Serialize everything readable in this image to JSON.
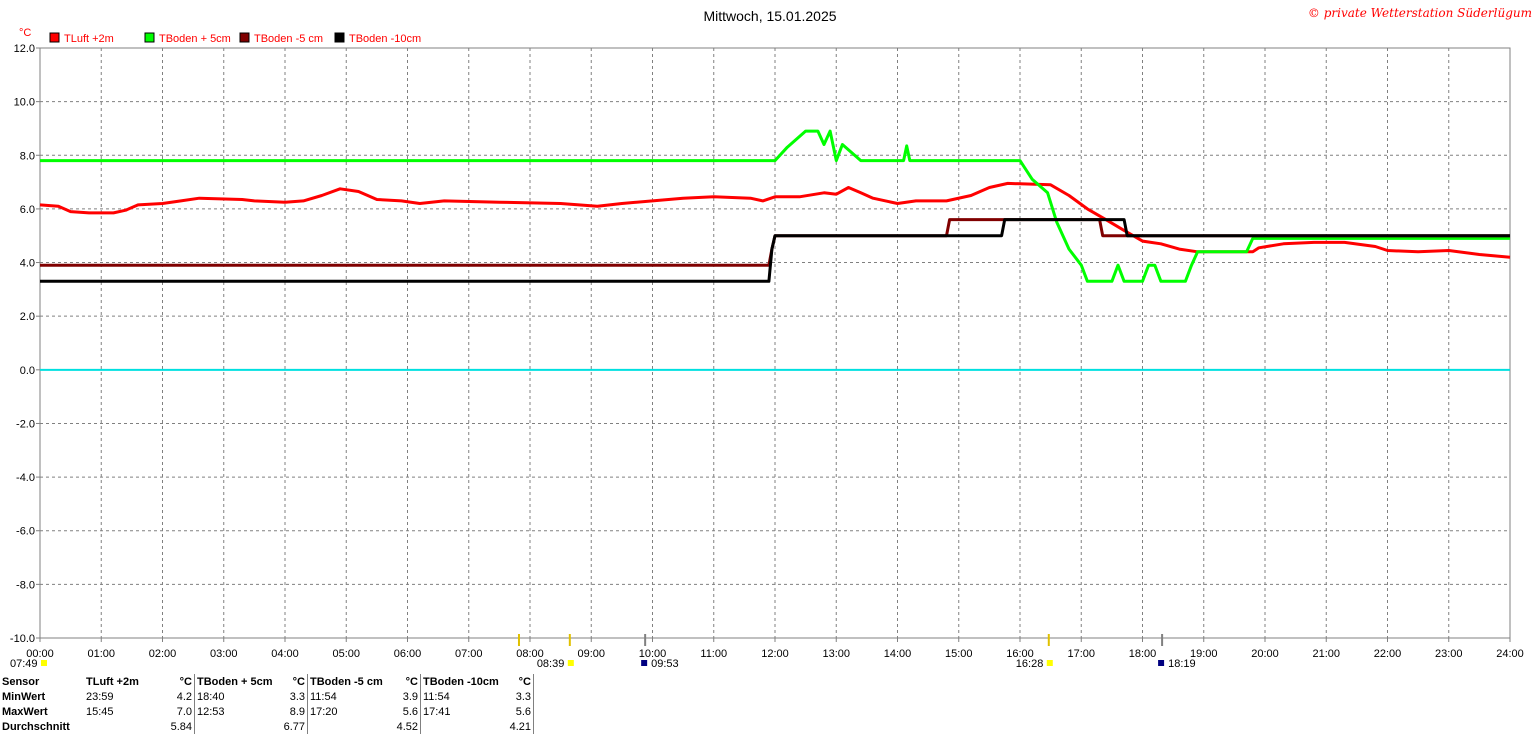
{
  "title": "Mittwoch, 15.01.2025",
  "copyright": "© private Wetterstation Süderlügum",
  "unit": "°C",
  "chart_data": {
    "type": "line",
    "xlim": [
      0,
      24
    ],
    "ylim": [
      -10,
      12
    ],
    "x_ticks": [
      "00:00",
      "01:00",
      "02:00",
      "03:00",
      "04:00",
      "05:00",
      "06:00",
      "07:00",
      "08:00",
      "09:00",
      "10:00",
      "11:00",
      "12:00",
      "13:00",
      "14:00",
      "15:00",
      "16:00",
      "17:00",
      "18:00",
      "19:00",
      "20:00",
      "21:00",
      "22:00",
      "23:00",
      "24:00"
    ],
    "y_ticks": [
      "12.0",
      "10.0",
      "8.0",
      "6.0",
      "4.0",
      "2.0",
      "0.0",
      "-2.0",
      "-4.0",
      "-6.0",
      "-8.0",
      "-10.0"
    ],
    "grid": true,
    "legend_position": "top-left",
    "zero_line": {
      "y": 0,
      "color": "#00e0e0"
    },
    "series": [
      {
        "name": "TLuft +2m",
        "color": "#ff0000",
        "points": [
          [
            0,
            6.15
          ],
          [
            0.3,
            6.1
          ],
          [
            0.5,
            5.9
          ],
          [
            0.8,
            5.85
          ],
          [
            1.2,
            5.85
          ],
          [
            1.4,
            5.95
          ],
          [
            1.6,
            6.15
          ],
          [
            2,
            6.2
          ],
          [
            2.3,
            6.3
          ],
          [
            2.6,
            6.4
          ],
          [
            3.3,
            6.35
          ],
          [
            3.5,
            6.3
          ],
          [
            4.0,
            6.25
          ],
          [
            4.3,
            6.3
          ],
          [
            4.6,
            6.5
          ],
          [
            4.9,
            6.75
          ],
          [
            5.2,
            6.65
          ],
          [
            5.5,
            6.35
          ],
          [
            5.9,
            6.3
          ],
          [
            6.2,
            6.2
          ],
          [
            6.6,
            6.3
          ],
          [
            7.5,
            6.25
          ],
          [
            8.5,
            6.2
          ],
          [
            9.1,
            6.1
          ],
          [
            9.5,
            6.2
          ],
          [
            10,
            6.3
          ],
          [
            10.5,
            6.4
          ],
          [
            11,
            6.45
          ],
          [
            11.6,
            6.4
          ],
          [
            11.8,
            6.3
          ],
          [
            12,
            6.45
          ],
          [
            12.4,
            6.45
          ],
          [
            12.8,
            6.6
          ],
          [
            13,
            6.55
          ],
          [
            13.2,
            6.8
          ],
          [
            13.4,
            6.6
          ],
          [
            13.6,
            6.4
          ],
          [
            14,
            6.2
          ],
          [
            14.3,
            6.3
          ],
          [
            14.8,
            6.3
          ],
          [
            15.2,
            6.5
          ],
          [
            15.5,
            6.8
          ],
          [
            15.8,
            6.95
          ],
          [
            16.5,
            6.9
          ],
          [
            16.8,
            6.5
          ],
          [
            17.1,
            6.0
          ],
          [
            17.4,
            5.6
          ],
          [
            17.7,
            5.2
          ],
          [
            18,
            4.8
          ],
          [
            18.3,
            4.7
          ],
          [
            18.6,
            4.5
          ],
          [
            18.9,
            4.4
          ],
          [
            19.3,
            4.4
          ],
          [
            19.8,
            4.4
          ],
          [
            19.9,
            4.55
          ],
          [
            20.3,
            4.7
          ],
          [
            20.8,
            4.75
          ],
          [
            21.3,
            4.75
          ],
          [
            21.8,
            4.6
          ],
          [
            22,
            4.45
          ],
          [
            22.5,
            4.4
          ],
          [
            23,
            4.45
          ],
          [
            23.5,
            4.3
          ],
          [
            24,
            4.2
          ]
        ]
      },
      {
        "name": "TBoden + 5cm",
        "color": "#00ff00",
        "points": [
          [
            0,
            7.8
          ],
          [
            12.0,
            7.8
          ],
          [
            12.2,
            8.3
          ],
          [
            12.5,
            8.9
          ],
          [
            12.7,
            8.9
          ],
          [
            12.8,
            8.4
          ],
          [
            12.9,
            8.9
          ],
          [
            13.0,
            7.8
          ],
          [
            13.1,
            8.4
          ],
          [
            13.4,
            7.8
          ],
          [
            14.1,
            7.8
          ],
          [
            14.15,
            8.35
          ],
          [
            14.2,
            7.8
          ],
          [
            16.0,
            7.8
          ],
          [
            16.2,
            7.1
          ],
          [
            16.45,
            6.6
          ],
          [
            16.6,
            5.5
          ],
          [
            16.8,
            4.5
          ],
          [
            17.0,
            3.9
          ],
          [
            17.1,
            3.3
          ],
          [
            17.5,
            3.3
          ],
          [
            17.6,
            3.9
          ],
          [
            17.7,
            3.3
          ],
          [
            18.0,
            3.3
          ],
          [
            18.1,
            3.9
          ],
          [
            18.2,
            3.9
          ],
          [
            18.3,
            3.3
          ],
          [
            18.7,
            3.3
          ],
          [
            18.8,
            3.9
          ],
          [
            18.9,
            4.4
          ],
          [
            19.7,
            4.4
          ],
          [
            19.8,
            4.9
          ],
          [
            24,
            4.9
          ]
        ]
      },
      {
        "name": "TBoden -5 cm",
        "color": "#800000",
        "points": [
          [
            0,
            3.9
          ],
          [
            11.9,
            3.9
          ],
          [
            11.95,
            4.5
          ],
          [
            12.0,
            5.0
          ],
          [
            14.8,
            5.0
          ],
          [
            14.85,
            5.6
          ],
          [
            15.7,
            5.6
          ],
          [
            17.3,
            5.6
          ],
          [
            17.35,
            5.0
          ],
          [
            24,
            5.0
          ]
        ]
      },
      {
        "name": "TBoden -10cm",
        "color": "#000000",
        "points": [
          [
            0,
            3.3
          ],
          [
            11.9,
            3.3
          ],
          [
            11.95,
            4.5
          ],
          [
            12.0,
            5.0
          ],
          [
            15.7,
            5.0
          ],
          [
            15.75,
            5.6
          ],
          [
            17.7,
            5.6
          ],
          [
            17.75,
            5.0
          ],
          [
            24,
            5.0
          ]
        ]
      }
    ],
    "time_markers": [
      {
        "x": 7.82,
        "label": "07:49",
        "color": "#ffff00"
      },
      {
        "x": 8.65,
        "label": "08:39",
        "color": "#ffff00"
      },
      {
        "x": 9.88,
        "label": "09:53",
        "color": "#000080"
      },
      {
        "x": 16.47,
        "label": "16:28",
        "color": "#ffff00"
      },
      {
        "x": 18.32,
        "label": "18:19",
        "color": "#000080"
      }
    ]
  },
  "stats": {
    "header": [
      "Sensor",
      "TLuft +2m",
      "°C",
      "TBoden + 5cm",
      "°C",
      "TBoden -5 cm",
      "°C",
      "TBoden -10cm",
      "°C"
    ],
    "rows": [
      {
        "label": "MinWert",
        "cells": [
          "23:59",
          "4.2",
          "18:40",
          "3.3",
          "11:54",
          "3.9",
          "11:54",
          "3.3"
        ]
      },
      {
        "label": "MaxWert",
        "cells": [
          "15:45",
          "7.0",
          "12:53",
          "8.9",
          "17:20",
          "5.6",
          "17:41",
          "5.6"
        ]
      },
      {
        "label": "Durchschnitt",
        "cells": [
          "",
          "5.84",
          "",
          "6.77",
          "",
          "4.52",
          "",
          "4.21"
        ]
      }
    ]
  }
}
